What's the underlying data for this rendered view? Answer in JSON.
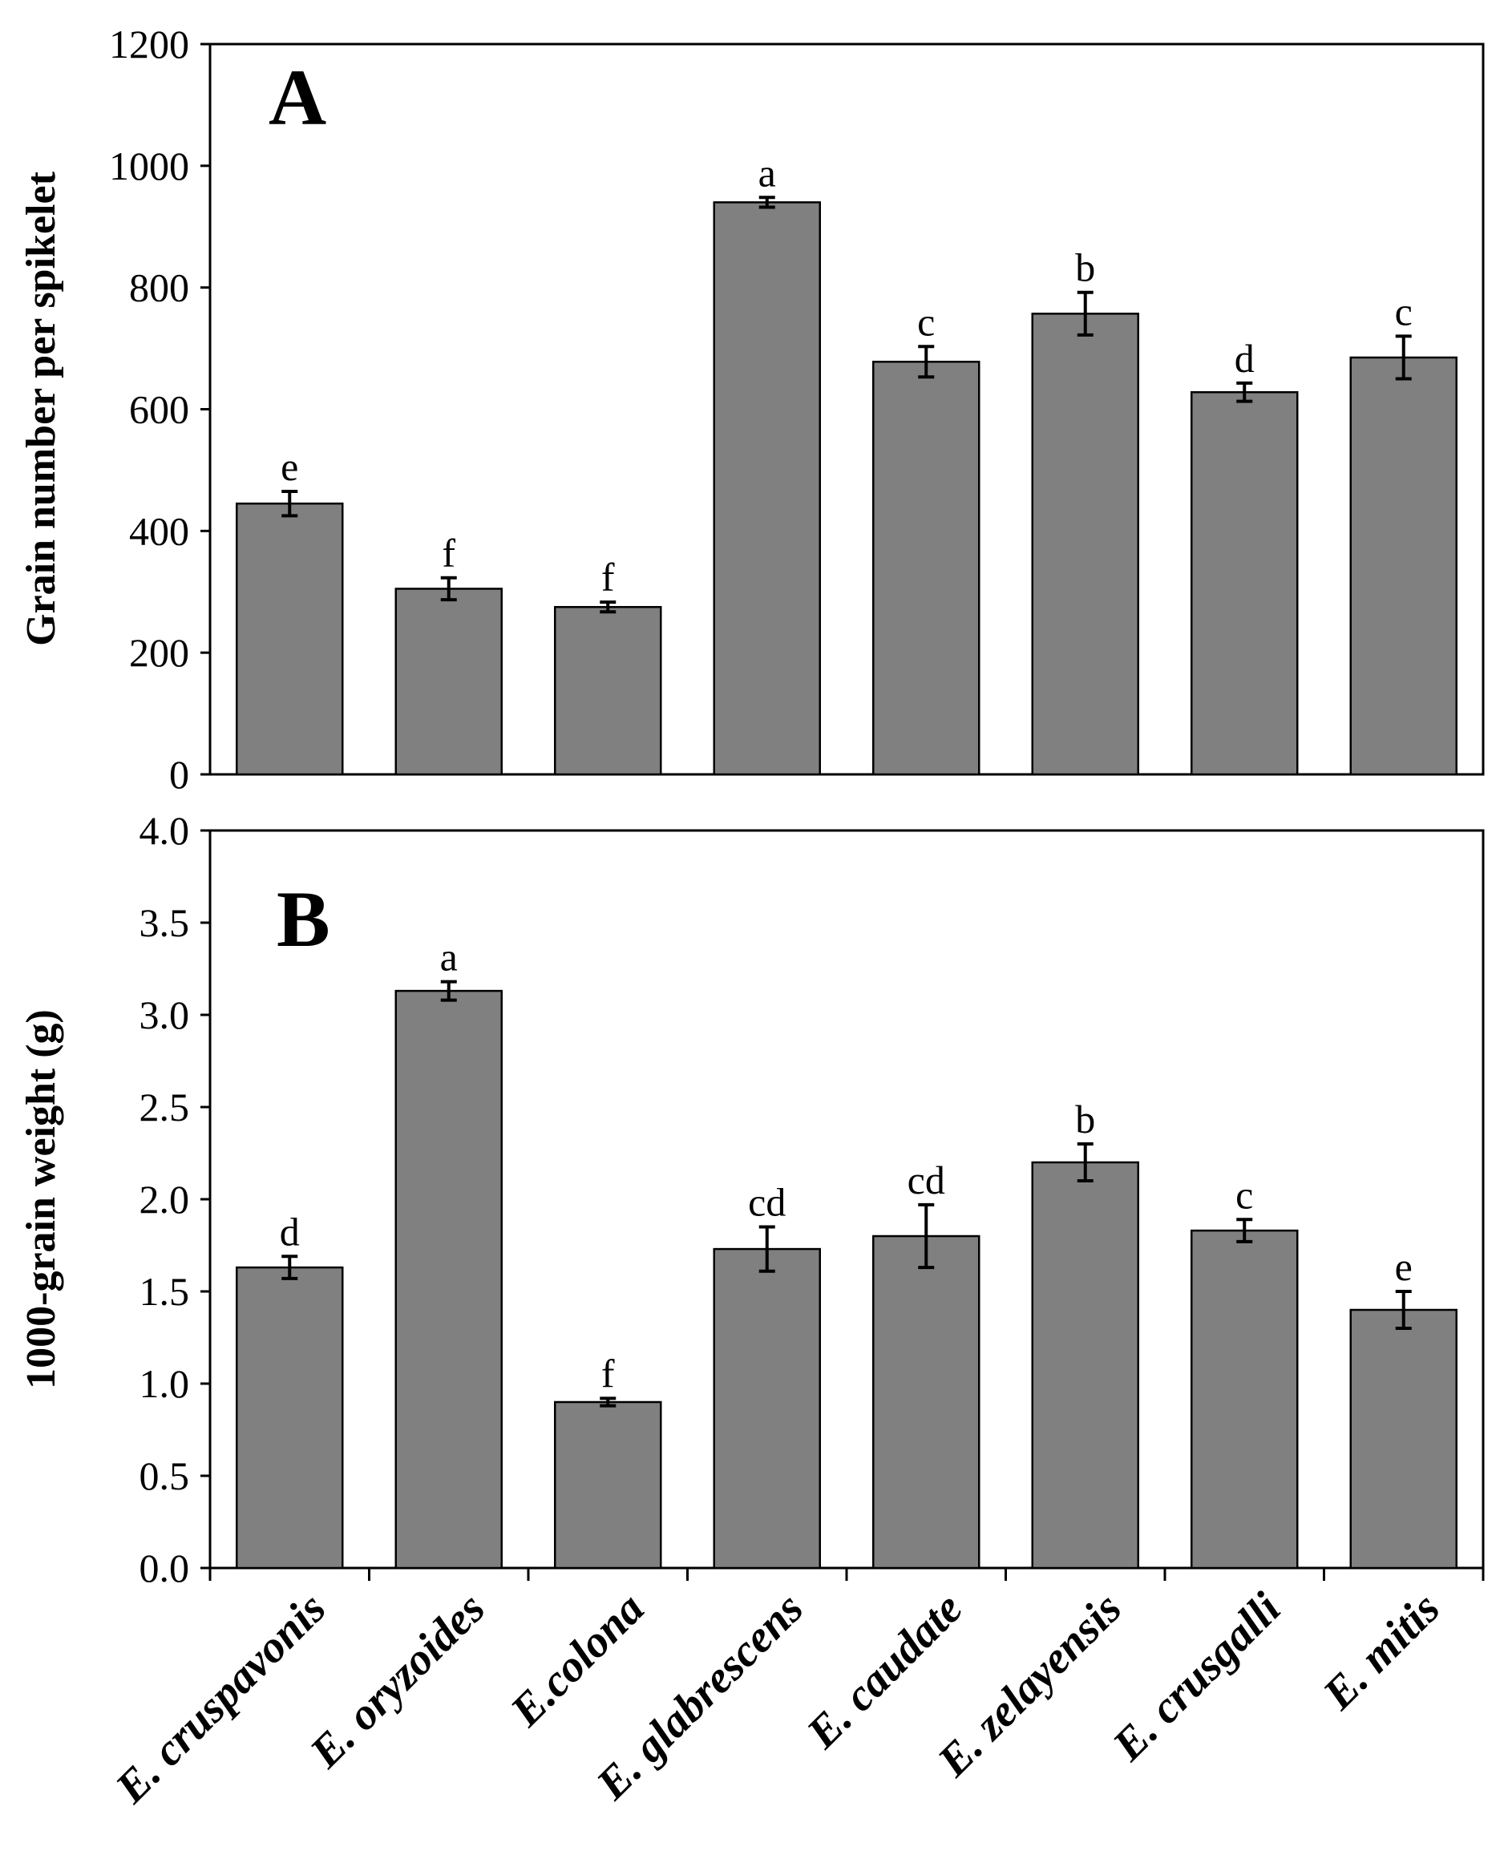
{
  "figure": {
    "bar_color": "#808080"
  },
  "categories": [
    "E. cruspavonis",
    "E. oryzoides",
    "E.colona",
    "E. glabrescens",
    "E. caudate",
    "E. zelayensis",
    "E. crusgalli",
    "E. mitis"
  ],
  "chart_data": [
    {
      "type": "bar",
      "panel": "A",
      "ylabel": "Grain number per spikelet",
      "ylim": [
        0,
        1200
      ],
      "yticks": [
        0,
        200,
        400,
        600,
        800,
        1000,
        1200
      ],
      "ytick_labels": [
        "0",
        "200",
        "400",
        "600",
        "800",
        "1000",
        "1200"
      ],
      "values": [
        445,
        305,
        275,
        940,
        678,
        757,
        628,
        685
      ],
      "errors": [
        20,
        18,
        8,
        8,
        25,
        35,
        15,
        35
      ],
      "letters": [
        "e",
        "f",
        "f",
        "a",
        "c",
        "b",
        "d",
        "c"
      ]
    },
    {
      "type": "bar",
      "panel": "B",
      "ylabel": "1000-grain weight (g)",
      "ylim": [
        0,
        4.0
      ],
      "yticks": [
        0,
        0.5,
        1.0,
        1.5,
        2.0,
        2.5,
        3.0,
        3.5,
        4.0
      ],
      "ytick_labels": [
        "0.0",
        "0.5",
        "1.0",
        "1.5",
        "2.0",
        "2.5",
        "3.0",
        "3.5",
        "4.0"
      ],
      "values": [
        1.63,
        3.13,
        0.9,
        1.73,
        1.8,
        2.2,
        1.83,
        1.4
      ],
      "errors": [
        0.06,
        0.05,
        0.02,
        0.12,
        0.17,
        0.1,
        0.06,
        0.1
      ],
      "letters": [
        "d",
        "a",
        "f",
        "cd",
        "cd",
        "b",
        "c",
        "e"
      ]
    }
  ]
}
